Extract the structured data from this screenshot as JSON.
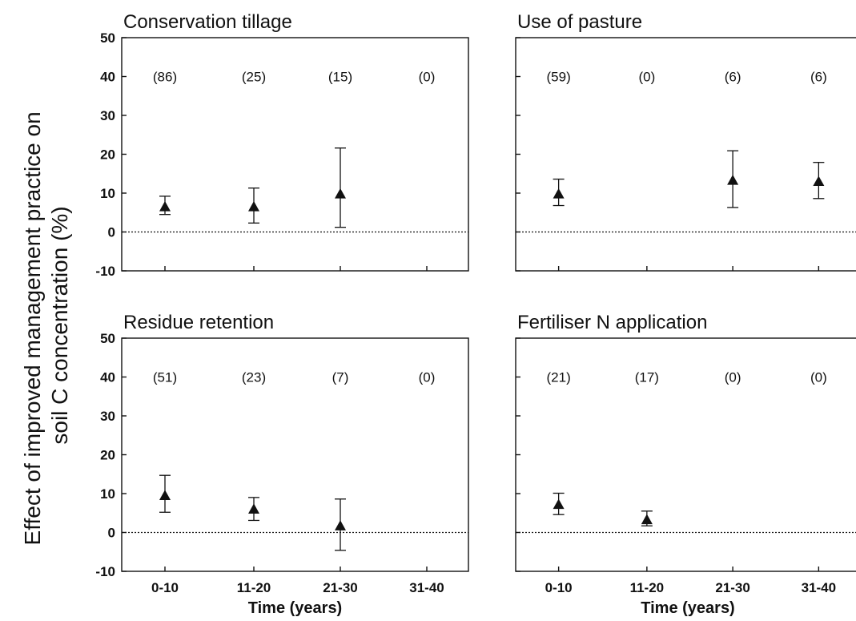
{
  "figure": {
    "ylabel_line1": "Effect of improved management practice on",
    "ylabel_line2": "soil C concentration (%)"
  },
  "chart_data": [
    {
      "type": "scatter",
      "title": "Conservation tillage",
      "categories": [
        "0-10",
        "11-20",
        "21-30",
        "31-40"
      ],
      "values": [
        6.5,
        6.5,
        9.8,
        null
      ],
      "error_low": [
        4.5,
        2.3,
        1.2,
        null
      ],
      "error_high": [
        9.2,
        11.3,
        21.6,
        null
      ],
      "counts": [
        "(86)",
        "(25)",
        "(15)",
        "(0)"
      ],
      "ylim": [
        -10,
        50
      ],
      "yticks": [
        "50",
        "40",
        "30",
        "20",
        "10",
        "0",
        "-10"
      ],
      "xlabel": "",
      "reference_line": 0
    },
    {
      "type": "scatter",
      "title": "Use of pasture",
      "categories": [
        "0-10",
        "11-20",
        "21-30",
        "31-40"
      ],
      "values": [
        9.8,
        null,
        13.3,
        13.0
      ],
      "error_low": [
        6.8,
        null,
        6.3,
        8.6
      ],
      "error_high": [
        13.6,
        null,
        20.9,
        17.9
      ],
      "counts": [
        "(59)",
        "(0)",
        "(6)",
        "(6)"
      ],
      "ylim": [
        -10,
        50
      ],
      "yticks": [],
      "xlabel": "",
      "reference_line": 0
    },
    {
      "type": "scatter",
      "title": "Residue retention",
      "categories": [
        "0-10",
        "11-20",
        "21-30",
        "31-40"
      ],
      "values": [
        9.5,
        6.0,
        1.7,
        null
      ],
      "error_low": [
        5.2,
        3.1,
        -4.6,
        null
      ],
      "error_high": [
        14.7,
        9.0,
        8.6,
        null
      ],
      "counts": [
        "(51)",
        "(23)",
        "(7)",
        "(0)"
      ],
      "ylim": [
        -10,
        50
      ],
      "yticks": [
        "50",
        "40",
        "30",
        "20",
        "10",
        "0",
        "-10"
      ],
      "xlabel": "Time (years)",
      "reference_line": 0
    },
    {
      "type": "scatter",
      "title": "Fertiliser N application",
      "categories": [
        "0-10",
        "11-20",
        "21-30",
        "31-40"
      ],
      "values": [
        7.2,
        3.3,
        null,
        null
      ],
      "error_low": [
        4.6,
        1.7,
        null,
        null
      ],
      "error_high": [
        10.1,
        5.5,
        null,
        null
      ],
      "counts": [
        "(21)",
        "(17)",
        "(0)",
        "(0)"
      ],
      "ylim": [
        -10,
        50
      ],
      "yticks": [],
      "xlabel": "Time (years)",
      "reference_line": 0
    }
  ]
}
